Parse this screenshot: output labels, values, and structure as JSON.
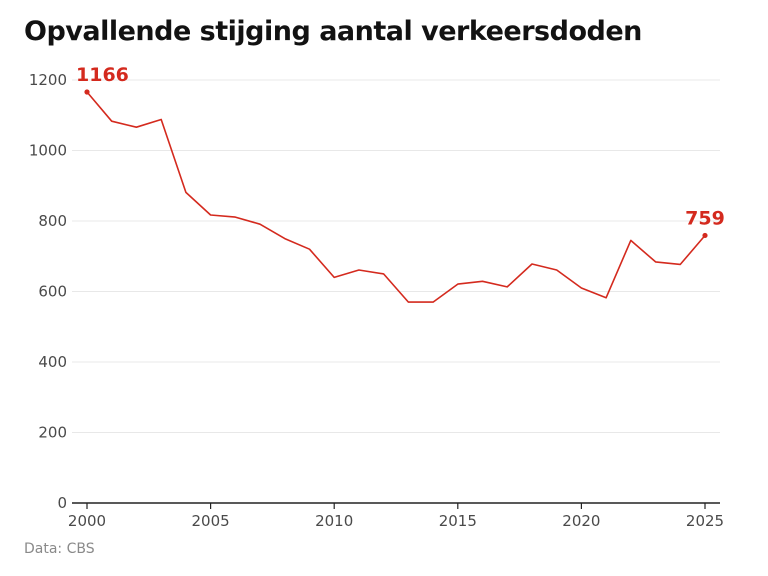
{
  "title": "Opvallende stijging aantal verkeersdoden",
  "source": "Data: CBS",
  "colors": {
    "line": "#d42a1e",
    "grid": "#e8e8e8",
    "axis": "#222222",
    "text": "#4a4a4a"
  },
  "chart_data": {
    "type": "line",
    "title": "Opvallende stijging aantal verkeersdoden",
    "xlabel": "",
    "ylabel": "",
    "xlim": [
      2000,
      2025
    ],
    "ylim": [
      0,
      1200
    ],
    "x_ticks": [
      2000,
      2005,
      2010,
      2015,
      2020,
      2025
    ],
    "y_ticks": [
      0,
      200,
      400,
      600,
      800,
      1000,
      1200
    ],
    "grid": true,
    "series": [
      {
        "x": [
          2000,
          2001,
          2002,
          2003,
          2004,
          2005,
          2006,
          2007,
          2008,
          2009,
          2010,
          2011,
          2012,
          2013,
          2014,
          2015,
          2016,
          2017,
          2018,
          2019,
          2020,
          2021,
          2022,
          2023,
          2024,
          2025
        ],
        "y": [
          1166,
          1083,
          1066,
          1088,
          881,
          817,
          811,
          791,
          750,
          720,
          640,
          661,
          650,
          570,
          570,
          621,
          629,
          613,
          678,
          661,
          610,
          582,
          745,
          684,
          677,
          759
        ]
      }
    ],
    "annotations": [
      {
        "x": 2000,
        "y": 1166,
        "text": "1166"
      },
      {
        "x": 2025,
        "y": 759,
        "text": "759"
      }
    ]
  }
}
